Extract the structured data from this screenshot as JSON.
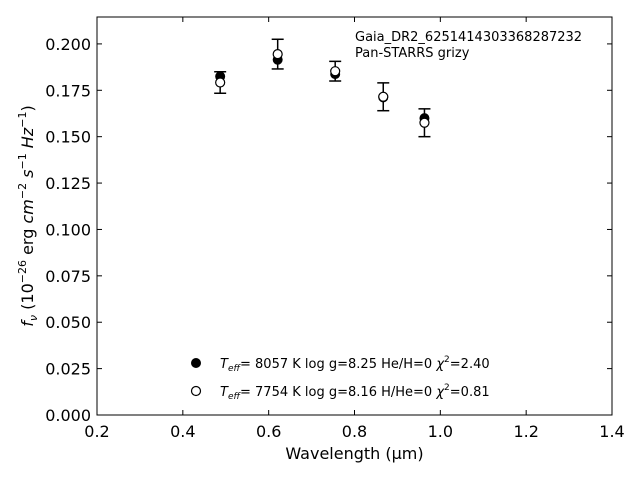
{
  "chart_data": {
    "type": "scatter",
    "xlabel": "Wavelength (μm)",
    "ylabel_parts": {
      "f": "f",
      "nu": "ν",
      "pre": " (10",
      "exp1": "−26",
      "mid": " erg ",
      "cm": "cm",
      "exp2": "−2",
      "s": " s",
      "exp3": "−1",
      "hz": " Hz",
      "exp4": "−1",
      "end": ")"
    },
    "xlim": [
      0.2,
      1.4
    ],
    "ylim": [
      0.0,
      0.2145
    ],
    "x_ticks": [
      0.2,
      0.4,
      0.6,
      0.8,
      1.0,
      1.2,
      1.4
    ],
    "x_tick_labels": [
      "0.2",
      "0.4",
      "0.6",
      "0.8",
      "1.0",
      "1.2",
      "1.4"
    ],
    "y_ticks": [
      0.0,
      0.025,
      0.05,
      0.075,
      0.1,
      0.125,
      0.15,
      0.175,
      0.2
    ],
    "y_tick_labels": [
      "0.000",
      "0.025",
      "0.050",
      "0.075",
      "0.100",
      "0.125",
      "0.150",
      "0.175",
      "0.200"
    ],
    "grid": false,
    "annotation_lines": [
      "Gaia_DR2_6251414303368287232",
      "Pan-STARRS grizy"
    ],
    "observed": {
      "x": [
        0.487,
        0.621,
        0.755,
        0.867,
        0.963
      ],
      "y": [
        0.1792,
        0.1945,
        0.1853,
        0.1715,
        0.1575
      ],
      "yerr": [
        0.0058,
        0.008,
        0.0053,
        0.0075,
        0.0075
      ]
    },
    "series": [
      {
        "marker": "filled",
        "x": [
          0.487,
          0.621,
          0.755,
          0.867,
          0.963
        ],
        "y": [
          0.1825,
          0.1915,
          0.1837,
          0.1712,
          0.16
        ],
        "legend": {
          "teff": "8057 K",
          "logg": "log g=8.25",
          "comp": "He/H=0",
          "chi2": "=2.40"
        }
      },
      {
        "marker": "open",
        "x": [
          0.487,
          0.621,
          0.755,
          0.867,
          0.963
        ],
        "y": [
          0.1792,
          0.1945,
          0.1853,
          0.1715,
          0.1575
        ],
        "legend": {
          "teff": "7754 K",
          "logg": "log g=8.16",
          "comp": "H/He=0",
          "chi2": "=0.81"
        }
      }
    ],
    "legend_placement": "lower-center"
  }
}
